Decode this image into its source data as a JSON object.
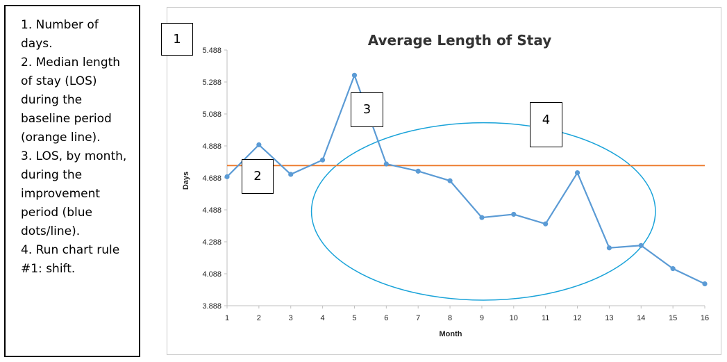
{
  "legend": {
    "items": [
      "1.  Number of days.",
      "2.  Median length of stay (LOS) during the baseline period (orange line).",
      "3.  LOS, by month, during the improvement period (blue dots/line).",
      "4.  Run chart rule #1: shift."
    ]
  },
  "markers": [
    "1",
    "2",
    "3",
    "4"
  ],
  "colors": {
    "series": "#5b9bd5",
    "median": "#ed7d31",
    "ellipse": "#1aa3d9"
  },
  "chart_data": {
    "type": "line",
    "title": "Average Length of Stay",
    "xlabel": "Month",
    "ylabel": "Days",
    "x": [
      1,
      2,
      3,
      4,
      5,
      6,
      7,
      8,
      9,
      10,
      11,
      12,
      13,
      14,
      15,
      16
    ],
    "x_tick_labels": [
      "1",
      "2",
      "3",
      "4",
      "5",
      "6",
      "7",
      "8",
      "9",
      "10",
      "11",
      "12",
      "13",
      "14",
      "15",
      "16"
    ],
    "y_tick_labels": [
      "3.888",
      "4.088",
      "4.288",
      "4.488",
      "4.688",
      "4.888",
      "5.088",
      "5.288",
      "5.488"
    ],
    "ylim": [
      3.888,
      5.488
    ],
    "series": [
      {
        "values": [
          4.695,
          4.895,
          4.71,
          4.8,
          5.33,
          4.775,
          4.73,
          4.67,
          4.44,
          4.46,
          4.4,
          4.72,
          4.25,
          4.265,
          4.12,
          4.025
        ]
      }
    ],
    "median": 4.765,
    "annotation_ellipse": {
      "x_center": 9.05,
      "y_center": 4.478,
      "x_radius": 5.4,
      "y_radius": 0.555
    },
    "grid": false,
    "legend": "none"
  }
}
